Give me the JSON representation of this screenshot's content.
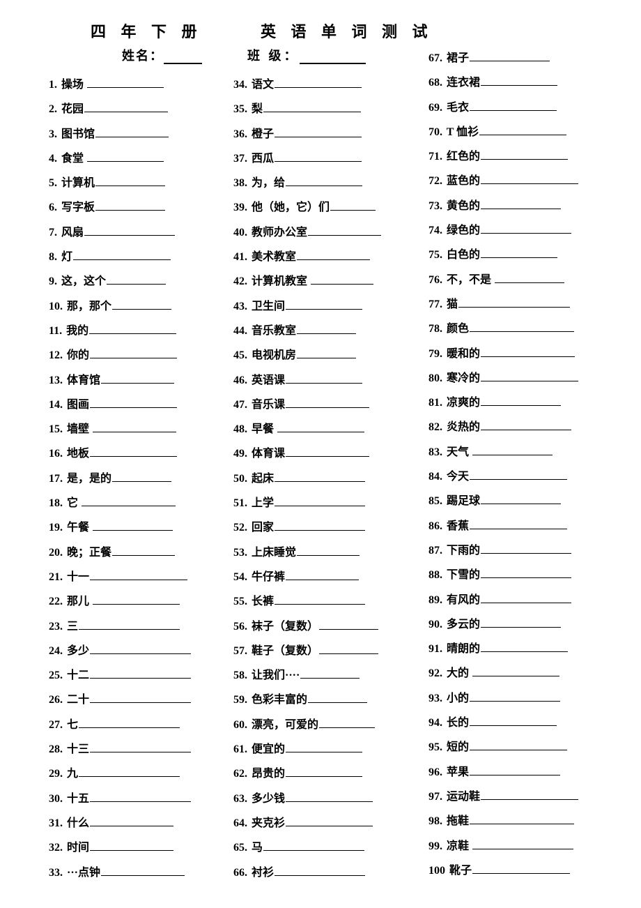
{
  "title_part1": "四 年 下 册",
  "title_part2": "英 语 单 词 测 试",
  "name_label": "姓名：",
  "class_label": "班 级：",
  "blank_default_width": 110,
  "items": [
    {
      "n": "1.",
      "t": "操场",
      "sp": 1,
      "bw": 110
    },
    {
      "n": "2.",
      "t": "花园",
      "bw": 120
    },
    {
      "n": "3.",
      "t": "图书馆",
      "bw": 105
    },
    {
      "n": "4.",
      "t": "食堂",
      "sp": 1,
      "bw": 110
    },
    {
      "n": "5.",
      "t": "计算机",
      "bw": 100
    },
    {
      "n": "6.",
      "t": "写字板",
      "bw": 100
    },
    {
      "n": "7.",
      "t": "风扇",
      "bw": 130
    },
    {
      "n": "8.",
      "t": "灯",
      "bw": 140
    },
    {
      "n": "9.",
      "t": "这，这个",
      "bw": 85
    },
    {
      "n": "10.",
      "t": "那，那个",
      "bw": 85
    },
    {
      "n": "11.",
      "t": "我的",
      "bw": 125
    },
    {
      "n": "12.",
      "t": "你的",
      "bw": 125
    },
    {
      "n": "13.",
      "t": "体育馆",
      "bw": 105
    },
    {
      "n": "14.",
      "t": "图画",
      "bw": 125
    },
    {
      "n": "15.",
      "t": "墙壁",
      "sp": 1,
      "bw": 120
    },
    {
      "n": "16.",
      "t": "地板",
      "bw": 125
    },
    {
      "n": "17.",
      "t": "是，是的",
      "bw": 85
    },
    {
      "n": "18.",
      "t": "它",
      "sp": 1,
      "bw": 135
    },
    {
      "n": "19.",
      "t": "午餐",
      "sp": 1,
      "bw": 115
    },
    {
      "n": "20.",
      "t": "晚；正餐",
      "bw": 90
    },
    {
      "n": "21.",
      "t": "十一",
      "bw": 140
    },
    {
      "n": "22.",
      "t": "那儿",
      "sp": 1,
      "bw": 125
    },
    {
      "n": "23.",
      "t": "三",
      "bw": 145
    },
    {
      "n": "24.",
      "t": "多少",
      "bw": 145
    },
    {
      "n": "25.",
      "t": "十二",
      "bw": 145
    },
    {
      "n": "26.",
      "t": "二十",
      "bw": 145
    },
    {
      "n": "27.",
      "t": "七",
      "bw": 145
    },
    {
      "n": "28.",
      "t": "十三",
      "bw": 145
    },
    {
      "n": "29.",
      "t": "九",
      "bw": 145
    },
    {
      "n": "30.",
      "t": "十五",
      "bw": 145
    },
    {
      "n": "31.",
      "t": "什么",
      "bw": 120
    },
    {
      "n": "32.",
      "t": "时间",
      "bw": 120
    },
    {
      "n": "33.",
      "t": "···点钟",
      "bw": 120
    },
    {
      "n": "34.",
      "t": "语文",
      "bw": 125
    },
    {
      "n": "35.",
      "t": "梨",
      "bw": 140
    },
    {
      "n": "36.",
      "t": "橙子",
      "bw": 125
    },
    {
      "n": "37.",
      "t": "西瓜",
      "bw": 125
    },
    {
      "n": "38.",
      "t": "为，给",
      "bw": 110
    },
    {
      "n": "39.",
      "t": "他（她，它）们",
      "bw": 65
    },
    {
      "n": "40.",
      "t": "教师办公室",
      "bw": 105
    },
    {
      "n": "41.",
      "t": "美术教室",
      "bw": 105
    },
    {
      "n": "42.",
      "t": "计算机教室",
      "sp": 1,
      "bw": 90
    },
    {
      "n": "43.",
      "t": "卫生间",
      "bw": 110
    },
    {
      "n": "44.",
      "t": "音乐教室",
      "bw": 85
    },
    {
      "n": "45.",
      "t": "电视机房",
      "bw": 85
    },
    {
      "n": "46.",
      "t": "英语课",
      "bw": 110
    },
    {
      "n": "47.",
      "t": "音乐课",
      "bw": 120
    },
    {
      "n": "48.",
      "t": "早餐",
      "sp": 1,
      "bw": 125
    },
    {
      "n": "49.",
      "t": "体育课",
      "bw": 120
    },
    {
      "n": "50.",
      "t": "起床",
      "bw": 130
    },
    {
      "n": "51.",
      "t": "上学",
      "bw": 130
    },
    {
      "n": "52.",
      "t": "回家",
      "bw": 130
    },
    {
      "n": "53.",
      "t": "上床睡觉",
      "bw": 90
    },
    {
      "n": "54.",
      "t": "牛仔裤",
      "bw": 105
    },
    {
      "n": "55.",
      "t": "长裤",
      "bw": 130
    },
    {
      "n": "56.",
      "t": "袜子（复数）",
      "bw": 85
    },
    {
      "n": "57.",
      "t": "鞋子（复数）",
      "bw": 85
    },
    {
      "n": "58.",
      "t": "让我们····",
      "bw": 85
    },
    {
      "n": "59.",
      "t": "色彩丰富的",
      "bw": 85
    },
    {
      "n": "60.",
      "t": "漂亮，可爱的",
      "bw": 80
    },
    {
      "n": "61.",
      "t": "便宜的",
      "bw": 110
    },
    {
      "n": "62.",
      "t": "昂贵的",
      "bw": 110
    },
    {
      "n": "63.",
      "t": "多少钱",
      "bw": 125
    },
    {
      "n": "64.",
      "t": "夹克衫",
      "bw": 125
    },
    {
      "n": "65.",
      "t": "马",
      "bw": 145
    },
    {
      "n": "66.",
      "t": "衬衫",
      "bw": 130
    },
    {
      "n": "67.",
      "t": "裙子",
      "bw": 115
    },
    {
      "n": "68.",
      "t": "连衣裙",
      "bw": 110
    },
    {
      "n": "69.",
      "t": "毛衣",
      "bw": 125
    },
    {
      "n": "70.",
      "t": "T 恤衫",
      "bw": 125
    },
    {
      "n": "71.",
      "t": "红色的",
      "bw": 125
    },
    {
      "n": "72.",
      "t": "蓝色的",
      "bw": 140
    },
    {
      "n": "73.",
      "t": "黄色的",
      "bw": 115
    },
    {
      "n": "74.",
      "t": "绿色的",
      "bw": 130
    },
    {
      "n": "75.",
      "t": "白色的",
      "bw": 110
    },
    {
      "n": "76.",
      "t": "不，不是",
      "sp": 1,
      "bw": 100
    },
    {
      "n": "77.",
      "t": "猫",
      "bw": 160
    },
    {
      "n": "78.",
      "t": "颜色",
      "bw": 150
    },
    {
      "n": "79.",
      "t": "暖和的",
      "bw": 135
    },
    {
      "n": "80.",
      "t": "寒冷的",
      "bw": 140
    },
    {
      "n": "81.",
      "t": "凉爽的",
      "bw": 115
    },
    {
      "n": "82.",
      "t": "炎热的",
      "bw": 130
    },
    {
      "n": "83.",
      "t": "天气",
      "sp": 1,
      "bw": 115
    },
    {
      "n": "84.",
      "t": "今天",
      "bw": 140
    },
    {
      "n": "85.",
      "t": "踢足球",
      "bw": 115
    },
    {
      "n": "86.",
      "t": "香蕉",
      "bw": 140
    },
    {
      "n": "87.",
      "t": "下雨的",
      "bw": 130
    },
    {
      "n": "88.",
      "t": "下雪的",
      "bw": 130
    },
    {
      "n": "89.",
      "t": "有风的",
      "bw": 130
    },
    {
      "n": "90.",
      "t": "多云的",
      "bw": 115
    },
    {
      "n": "91.",
      "t": "晴朗的",
      "bw": 125
    },
    {
      "n": "92.",
      "t": "大的",
      "sp": 1,
      "bw": 125
    },
    {
      "n": "93.",
      "t": "小的",
      "bw": 130
    },
    {
      "n": "94.",
      "t": "长的",
      "bw": 125
    },
    {
      "n": "95.",
      "t": "短的",
      "bw": 140
    },
    {
      "n": "96.",
      "t": "苹果",
      "bw": 130
    },
    {
      "n": "97.",
      "t": "运动鞋",
      "bw": 140
    },
    {
      "n": "98.",
      "t": "拖鞋",
      "bw": 150
    },
    {
      "n": "99.",
      "t": "凉鞋",
      "sp": 1,
      "bw": 145
    },
    {
      "n": "100",
      "t": "靴子",
      "bw": 140
    }
  ]
}
